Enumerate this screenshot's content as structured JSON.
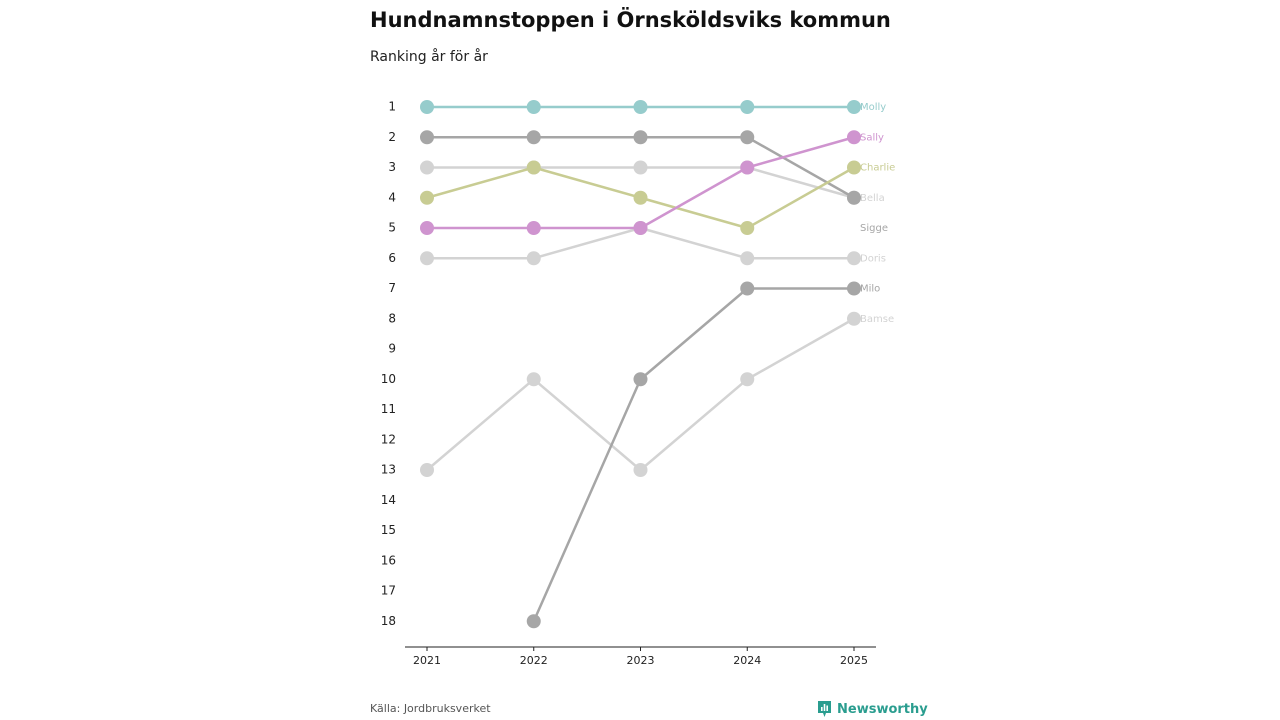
{
  "chart_data": {
    "type": "line",
    "title": "Hundnamnstoppen i Örnsköldsviks kommun",
    "subtitle": "Ranking år för år",
    "xlabel": "",
    "ylabel": "",
    "x": [
      "2021",
      "2022",
      "2023",
      "2024",
      "2025"
    ],
    "y_ticks": [
      "1",
      "2",
      "3",
      "4",
      "5",
      "6",
      "7",
      "8",
      "9",
      "10",
      "11",
      "12",
      "13",
      "14",
      "15",
      "16",
      "17",
      "18"
    ],
    "ylim": [
      1,
      18
    ],
    "y_inverted": true,
    "series": [
      {
        "name": "Bamse",
        "color": "#d3d3d3",
        "values": [
          13,
          10,
          13,
          10,
          8
        ]
      },
      {
        "name": "Doris",
        "color": "#d3d3d3",
        "values": [
          6,
          6,
          5,
          6,
          6
        ]
      },
      {
        "name": "Bella",
        "color": "#d3d3d3",
        "values": [
          3,
          3,
          3,
          3,
          4
        ]
      },
      {
        "name": "Milo",
        "color": "#a6a6a6",
        "values": [
          null,
          18,
          10,
          7,
          7
        ]
      },
      {
        "name": "Sigge",
        "color": "#a6a6a6",
        "values": [
          2,
          2,
          2,
          2,
          4
        ]
      },
      {
        "name": "Charlie",
        "color": "#c8cc93",
        "values": [
          4,
          3,
          4,
          5,
          3
        ]
      },
      {
        "name": "Sally",
        "color": "#cf94cf",
        "values": [
          5,
          5,
          5,
          3,
          2
        ]
      },
      {
        "name": "Molly",
        "color": "#96cccc",
        "values": [
          1,
          1,
          1,
          1,
          1
        ]
      }
    ],
    "legend": "end-of-line labels"
  },
  "footer": {
    "source": "Källa: Jordbruksverket",
    "brand": "Newsworthy"
  },
  "colors": {
    "brand": "#2a9d8f",
    "axis": "#222222"
  }
}
